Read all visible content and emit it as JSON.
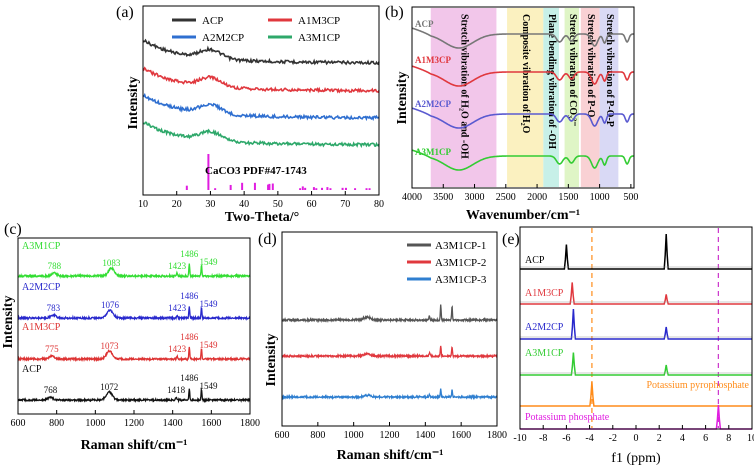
{
  "figure": {
    "panels": [
      "(a)",
      "(b)",
      "(c)",
      "(d)",
      "(e)"
    ]
  },
  "chart_data": [
    {
      "id": "a",
      "type": "line",
      "panel_label": "(a)",
      "xlabel": "Two-Theta/°",
      "ylabel": "Intensity",
      "xlim": [
        10,
        80
      ],
      "xticks": [
        "10",
        "20",
        "30",
        "40",
        "50",
        "60",
        "70",
        "80"
      ],
      "series": [
        {
          "name": "ACP",
          "color": "#333333",
          "offset": 3
        },
        {
          "name": "A1M3CP",
          "color": "#e0383e",
          "offset": 2
        },
        {
          "name": "A2M2CP",
          "color": "#2f6fd0",
          "offset": 1
        },
        {
          "name": "A3M1CP",
          "color": "#2ea86a",
          "offset": 0
        }
      ],
      "reference": {
        "label": "CaCO3 PDF#47-1743",
        "color": "#e01de0",
        "peaks": [
          [
            23.0,
            0.12
          ],
          [
            29.4,
            1.0
          ],
          [
            31.4,
            0.05
          ],
          [
            36.0,
            0.14
          ],
          [
            39.4,
            0.2
          ],
          [
            43.2,
            0.2
          ],
          [
            47.1,
            0.15
          ],
          [
            47.5,
            0.17
          ],
          [
            48.5,
            0.18
          ],
          [
            56.6,
            0.05
          ],
          [
            57.4,
            0.1
          ],
          [
            58.1,
            0.06
          ],
          [
            60.7,
            0.08
          ],
          [
            61.4,
            0.05
          ],
          [
            63.1,
            0.06
          ],
          [
            64.7,
            0.08
          ],
          [
            65.6,
            0.05
          ],
          [
            69.2,
            0.06
          ],
          [
            70.2,
            0.06
          ],
          [
            72.9,
            0.05
          ],
          [
            76.3,
            0.05
          ],
          [
            77.2,
            0.05
          ]
        ]
      }
    },
    {
      "id": "b",
      "type": "line",
      "panel_label": "(b)",
      "xlabel": "Wavenumber/cm⁻¹",
      "ylabel": "Intensity",
      "xlim": [
        4000,
        450
      ],
      "xticks": [
        "4000",
        "3500",
        "3000",
        "2500",
        "2000",
        "1500",
        "1000",
        "500"
      ],
      "series": [
        {
          "name": "ACP",
          "color": "#777777"
        },
        {
          "name": "A1M3CP",
          "color": "#e0383e"
        },
        {
          "name": "A2M2CP",
          "color": "#5a5ad0"
        },
        {
          "name": "A3M1CP",
          "color": "#33cc33"
        }
      ],
      "bands": [
        {
          "from": 3700,
          "to": 2650,
          "color": "#f2c6ea",
          "label": "Stretch vibration of H₂O and -OH"
        },
        {
          "from": 2480,
          "to": 1900,
          "color": "#fbf1c0",
          "label": "Composite vibration of H₂O"
        },
        {
          "from": 1900,
          "to": 1650,
          "color": "#c7f0e8",
          "label": "Plane bending vibration of -OH"
        },
        {
          "from": 1560,
          "to": 1330,
          "color": "#dff5c6",
          "label": "Stretch vibration of CO₃²⁻"
        },
        {
          "from": 1300,
          "to": 1000,
          "color": "#f9d1d4",
          "label": "Stretch vibration of P-O"
        },
        {
          "from": 1000,
          "to": 700,
          "color": "#d9d9f5",
          "label": "Stretch vibration of P-O-P"
        }
      ]
    },
    {
      "id": "c",
      "type": "line",
      "panel_label": "(c)",
      "xlabel": "Raman shift/cm⁻¹",
      "ylabel": "Intensity",
      "xlim": [
        600,
        1800
      ],
      "xticks": [
        "600",
        "800",
        "1000",
        "1200",
        "1400",
        "1600",
        "1800"
      ],
      "series": [
        {
          "name": "A3M1CP",
          "color": "#33dd33",
          "peak_labels": [
            "788",
            "1083",
            "1423",
            "1486",
            "1549"
          ]
        },
        {
          "name": "A2M2CP",
          "color": "#2828cc",
          "peak_labels": [
            "783",
            "1076",
            "1423",
            "1486",
            "1549"
          ]
        },
        {
          "name": "A1M3CP",
          "color": "#dd3333",
          "peak_labels": [
            "775",
            "1073",
            "1423",
            "1486",
            "1549"
          ]
        },
        {
          "name": "ACP",
          "color": "#111111",
          "peak_labels": [
            "768",
            "1072",
            "1418",
            "1486",
            "1549"
          ]
        }
      ]
    },
    {
      "id": "d",
      "type": "line",
      "panel_label": "(d)",
      "xlabel": "Raman shift/cm⁻¹",
      "ylabel": "Intensity",
      "xlim": [
        600,
        1800
      ],
      "xticks": [
        "600",
        "800",
        "1000",
        "1200",
        "1400",
        "1600",
        "1800"
      ],
      "series": [
        {
          "name": "A3M1CP-1",
          "color": "#555555"
        },
        {
          "name": "A3M1CP-2",
          "color": "#e0383e"
        },
        {
          "name": "A3M1CP-3",
          "color": "#2f7fd0"
        }
      ]
    },
    {
      "id": "e",
      "type": "line",
      "panel_label": "(e)",
      "xlabel": "f1 (ppm)",
      "xlim": [
        -10,
        10
      ],
      "xticks": [
        "-10",
        "-8",
        "-6",
        "-4",
        "-2",
        "0",
        "2",
        "4",
        "6",
        "8",
        "10"
      ],
      "series": [
        {
          "name": "ACP",
          "color": "#000000",
          "peaks": [
            [
              -6.0,
              0.7
            ],
            [
              2.6,
              1.0
            ]
          ]
        },
        {
          "name": "A1M3CP",
          "color": "#e0383e",
          "peaks": [
            [
              -5.5,
              0.9
            ],
            [
              2.6,
              0.4
            ]
          ]
        },
        {
          "name": "A2M2CP",
          "color": "#2828cc",
          "peaks": [
            [
              -5.4,
              1.0
            ],
            [
              2.6,
              0.4
            ]
          ]
        },
        {
          "name": "A3M1CP",
          "color": "#33cc33",
          "peaks": [
            [
              -5.4,
              0.9
            ],
            [
              2.6,
              0.4
            ]
          ]
        },
        {
          "name": "Potassium pyrophosphate",
          "color": "#ff8c1a",
          "peaks": [
            [
              -3.8,
              1.0
            ]
          ]
        },
        {
          "name": "Potassium phosphate",
          "color": "#e01de0",
          "peaks": [
            [
              7.1,
              1.0
            ]
          ]
        }
      ],
      "reference_lines": [
        {
          "x": -3.8,
          "color": "#ff8c1a"
        },
        {
          "x": 7.1,
          "color": "#cc33cc"
        }
      ]
    }
  ]
}
